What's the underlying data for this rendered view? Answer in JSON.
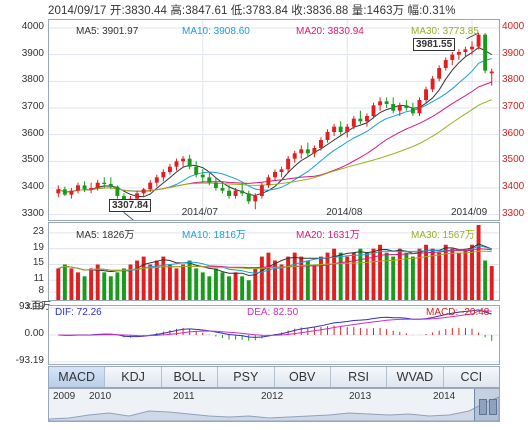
{
  "header": {
    "date": "2014/09/17",
    "open": "开:3830.44",
    "high": "高:3847.61",
    "low": "低:3783.84",
    "close": "收:3836.88",
    "volume": "量:1463万",
    "change": "幅:0.31%"
  },
  "price_panel": {
    "ma5": "MA5: 3901.97",
    "ma10": "MA10: 3908.60",
    "ma20": "MA20: 3830.94",
    "ma30": "MA30: 3773.85",
    "y_ticks": [
      "4000",
      "3900",
      "3800",
      "3700",
      "3600",
      "3500",
      "3400",
      "3300"
    ],
    "month_labels": [
      "2014/07",
      "2014/08",
      "2014/09"
    ],
    "high_callout": "3981.55",
    "low_callout": "3307.84"
  },
  "volume_panel": {
    "ma5": "MA5: 1826万",
    "ma10": "MA10: 1816万",
    "ma20": "MA20: 1631万",
    "ma30": "MA30: 1567万",
    "y_ticks": [
      "23",
      "19",
      "15",
      "11",
      "8"
    ],
    "unit": "x百万"
  },
  "macd_panel": {
    "dif": "DIF: 72.26",
    "dea": "DEA: 82.50",
    "macd": "MACD: -20.48",
    "y_ticks": [
      "93.19",
      "0.00",
      "-93.19"
    ]
  },
  "tabs": [
    "MACD",
    "KDJ",
    "BOLL",
    "PSY",
    "OBV",
    "RSI",
    "WVAD",
    "CCI"
  ],
  "navigator_years": [
    "2009",
    "2010",
    "2011",
    "2012",
    "2013",
    "2014"
  ],
  "colors": {
    "up": "#e02020",
    "down": "#1a9a1a",
    "ma5": "#333333",
    "ma10": "#1aa0d8",
    "ma20": "#d81a7a",
    "ma30": "#99b020",
    "dif": "#3030c0",
    "dea": "#d030c0"
  },
  "chart_data": [
    {
      "type": "candlestick",
      "title": "",
      "x_range": [
        "2014/06/18",
        "2014/09/17"
      ],
      "ylim": [
        3280,
        4030
      ],
      "ohlc_approx": [
        [
          3380,
          3410,
          3365,
          3395
        ],
        [
          3395,
          3405,
          3370,
          3375
        ],
        [
          3375,
          3400,
          3360,
          3390
        ],
        [
          3390,
          3420,
          3380,
          3410
        ],
        [
          3410,
          3425,
          3385,
          3395
        ],
        [
          3395,
          3420,
          3380,
          3400
        ],
        [
          3400,
          3430,
          3390,
          3420
        ],
        [
          3420,
          3440,
          3400,
          3415
        ],
        [
          3415,
          3440,
          3395,
          3405
        ],
        [
          3405,
          3410,
          3360,
          3370
        ],
        [
          3370,
          3380,
          3307.84,
          3330
        ],
        [
          3330,
          3370,
          3320,
          3360
        ],
        [
          3360,
          3390,
          3345,
          3380
        ],
        [
          3380,
          3400,
          3365,
          3395
        ],
        [
          3395,
          3430,
          3385,
          3420
        ],
        [
          3420,
          3450,
          3405,
          3440
        ],
        [
          3440,
          3470,
          3425,
          3460
        ],
        [
          3460,
          3490,
          3450,
          3480
        ],
        [
          3480,
          3510,
          3465,
          3500
        ],
        [
          3500,
          3520,
          3480,
          3510
        ],
        [
          3510,
          3525,
          3470,
          3480
        ],
        [
          3480,
          3500,
          3440,
          3450
        ],
        [
          3450,
          3470,
          3420,
          3440
        ],
        [
          3440,
          3460,
          3410,
          3420
        ],
        [
          3420,
          3440,
          3390,
          3400
        ],
        [
          3400,
          3420,
          3380,
          3390
        ],
        [
          3390,
          3410,
          3360,
          3370
        ],
        [
          3370,
          3400,
          3360,
          3390
        ],
        [
          3390,
          3420,
          3370,
          3380
        ],
        [
          3380,
          3390,
          3340,
          3350
        ],
        [
          3350,
          3380,
          3320,
          3370
        ],
        [
          3370,
          3420,
          3360,
          3410
        ],
        [
          3410,
          3450,
          3400,
          3440
        ],
        [
          3440,
          3470,
          3430,
          3460
        ],
        [
          3460,
          3480,
          3440,
          3470
        ],
        [
          3470,
          3520,
          3460,
          3510
        ],
        [
          3510,
          3540,
          3495,
          3530
        ],
        [
          3530,
          3560,
          3510,
          3545
        ],
        [
          3545,
          3570,
          3520,
          3530
        ],
        [
          3530,
          3560,
          3515,
          3550
        ],
        [
          3550,
          3590,
          3540,
          3580
        ],
        [
          3580,
          3620,
          3570,
          3610
        ],
        [
          3610,
          3640,
          3595,
          3630
        ],
        [
          3630,
          3650,
          3600,
          3610
        ],
        [
          3610,
          3640,
          3590,
          3630
        ],
        [
          3630,
          3670,
          3620,
          3660
        ],
        [
          3660,
          3690,
          3640,
          3650
        ],
        [
          3650,
          3680,
          3630,
          3670
        ],
        [
          3670,
          3720,
          3660,
          3710
        ],
        [
          3710,
          3740,
          3690,
          3725
        ],
        [
          3725,
          3740,
          3700,
          3715
        ],
        [
          3715,
          3740,
          3680,
          3690
        ],
        [
          3690,
          3720,
          3670,
          3710
        ],
        [
          3710,
          3730,
          3690,
          3700
        ],
        [
          3700,
          3720,
          3670,
          3680
        ],
        [
          3680,
          3740,
          3670,
          3730
        ],
        [
          3730,
          3780,
          3720,
          3770
        ],
        [
          3770,
          3820,
          3760,
          3810
        ],
        [
          3810,
          3860,
          3800,
          3850
        ],
        [
          3850,
          3890,
          3840,
          3880
        ],
        [
          3880,
          3910,
          3860,
          3900
        ],
        [
          3900,
          3920,
          3880,
          3910
        ],
        [
          3910,
          3930,
          3890,
          3920
        ],
        [
          3920,
          3950,
          3900,
          3930
        ],
        [
          3930,
          3981.55,
          3920,
          3975
        ],
        [
          3975,
          3981.55,
          3830,
          3840
        ],
        [
          3830.44,
          3847.61,
          3783.84,
          3836.88
        ]
      ],
      "ma5": 3901.97,
      "ma10": 3908.6,
      "ma20": 3830.94,
      "ma30": 3773.85
    },
    {
      "type": "bar",
      "title": "",
      "ylabel": "x百万",
      "ylim": [
        8,
        25
      ],
      "values_approx": [
        14,
        15,
        14,
        13,
        12,
        14,
        15,
        13,
        12,
        13,
        14,
        15,
        16,
        17,
        15,
        16,
        17,
        15,
        14,
        15,
        16,
        14,
        13,
        12,
        14,
        13,
        12,
        13,
        12,
        11,
        14,
        17,
        18,
        16,
        15,
        17,
        18,
        17,
        16,
        15,
        17,
        18,
        19,
        18,
        17,
        18,
        19,
        18,
        19,
        20,
        18,
        17,
        19,
        18,
        17,
        19,
        20,
        19,
        18,
        20,
        19,
        18,
        19,
        20,
        25,
        16,
        14.6
      ]
    },
    {
      "type": "line",
      "title": "",
      "ylim": [
        -93.19,
        93.19
      ],
      "dif_last": 72.26,
      "dea_last": 82.5,
      "macd_last": -20.48
    }
  ]
}
